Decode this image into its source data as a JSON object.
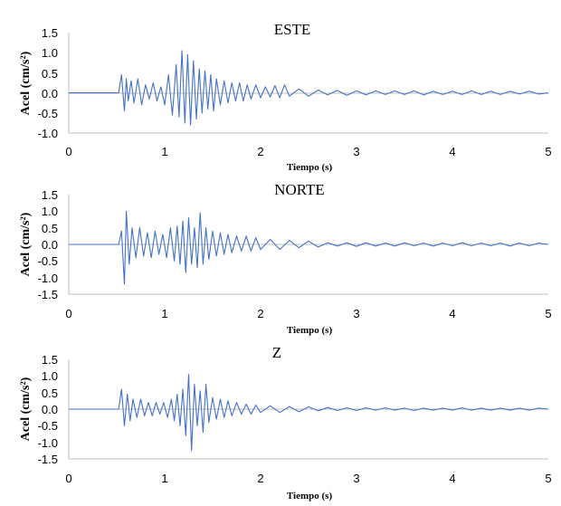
{
  "chart_data": [
    {
      "type": "line",
      "title": "ESTE",
      "xlabel": "Tiempo (s)",
      "ylabel": "Acel (cm/s²)",
      "xlim": [
        0,
        5
      ],
      "ylim": [
        -1.0,
        1.5
      ],
      "xticks": [
        "0",
        "1",
        "2",
        "3",
        "4",
        "5"
      ],
      "yticks": [
        "-1.0",
        "-0.5",
        "0.0",
        "0.5",
        "1.0",
        "1.5"
      ],
      "grid": false,
      "color": "#4472C4",
      "series": [
        {
          "x": [
            0,
            0.52,
            0.55,
            0.58,
            0.6,
            0.62,
            0.65,
            0.68,
            0.72,
            0.76,
            0.8,
            0.84,
            0.88,
            0.92,
            0.96,
            1.0,
            1.04,
            1.08,
            1.12,
            1.15,
            1.18,
            1.21,
            1.24,
            1.27,
            1.3,
            1.33,
            1.36,
            1.39,
            1.42,
            1.45,
            1.48,
            1.51,
            1.54,
            1.58,
            1.62,
            1.66,
            1.7,
            1.74,
            1.78,
            1.82,
            1.86,
            1.9,
            1.95,
            2.0,
            2.05,
            2.1,
            2.15,
            2.2,
            2.25,
            2.3,
            2.4,
            2.5,
            2.6,
            2.7,
            2.8,
            2.9,
            3.0,
            3.1,
            3.2,
            3.3,
            3.4,
            3.5,
            3.6,
            3.7,
            3.8,
            3.9,
            4.0,
            4.1,
            4.2,
            4.3,
            4.4,
            4.5,
            4.6,
            4.7,
            4.8,
            4.9,
            5.0
          ],
          "y": [
            0.0,
            0.0,
            0.45,
            -0.45,
            0.35,
            -0.2,
            0.3,
            -0.25,
            0.35,
            -0.3,
            0.2,
            -0.15,
            0.25,
            -0.2,
            0.15,
            -0.3,
            0.45,
            -0.55,
            0.7,
            -0.6,
            1.05,
            -0.75,
            0.95,
            -0.8,
            0.8,
            -0.65,
            0.6,
            -0.5,
            0.55,
            -0.4,
            0.45,
            -0.45,
            0.35,
            -0.3,
            0.3,
            -0.25,
            0.25,
            -0.2,
            0.25,
            -0.2,
            0.2,
            -0.15,
            0.2,
            -0.12,
            0.15,
            -0.1,
            0.18,
            -0.12,
            0.2,
            -0.08,
            0.1,
            -0.08,
            0.07,
            -0.05,
            0.06,
            -0.06,
            0.05,
            -0.05,
            0.05,
            -0.04,
            0.05,
            -0.04,
            0.05,
            -0.05,
            0.04,
            -0.04,
            0.04,
            -0.04,
            0.05,
            -0.04,
            0.04,
            -0.04,
            0.04,
            -0.03,
            0.04,
            -0.03,
            0.0
          ]
        }
      ]
    },
    {
      "type": "line",
      "title": "NORTE",
      "xlabel": "Tiempo (s)",
      "ylabel": "Acel (cm/s²)",
      "xlim": [
        0,
        5
      ],
      "ylim": [
        -1.5,
        1.5
      ],
      "xticks": [
        "0",
        "1",
        "2",
        "3",
        "4",
        "5"
      ],
      "yticks": [
        "-1.5",
        "-1.0",
        "-0.5",
        "0.0",
        "0.5",
        "1.0",
        "1.5"
      ],
      "grid": false,
      "color": "#4472C4",
      "series": [
        {
          "x": [
            0,
            0.52,
            0.55,
            0.58,
            0.6,
            0.63,
            0.66,
            0.7,
            0.74,
            0.78,
            0.82,
            0.86,
            0.9,
            0.94,
            0.98,
            1.02,
            1.06,
            1.1,
            1.13,
            1.16,
            1.19,
            1.22,
            1.25,
            1.28,
            1.31,
            1.34,
            1.37,
            1.4,
            1.43,
            1.46,
            1.5,
            1.54,
            1.58,
            1.62,
            1.66,
            1.7,
            1.75,
            1.8,
            1.85,
            1.9,
            1.95,
            2.0,
            2.1,
            2.2,
            2.3,
            2.4,
            2.5,
            2.6,
            2.7,
            2.8,
            2.9,
            3.0,
            3.1,
            3.2,
            3.3,
            3.4,
            3.5,
            3.6,
            3.7,
            3.8,
            3.9,
            4.0,
            4.1,
            4.2,
            4.3,
            4.4,
            4.5,
            4.6,
            4.7,
            4.8,
            4.9,
            5.0
          ],
          "y": [
            0.0,
            0.0,
            0.4,
            -1.2,
            1.0,
            -0.6,
            0.5,
            -0.4,
            0.5,
            -0.35,
            0.35,
            -0.4,
            0.4,
            -0.3,
            0.3,
            -0.4,
            0.5,
            -0.5,
            0.55,
            -0.6,
            0.7,
            -0.85,
            0.8,
            -0.6,
            0.5,
            -0.7,
            0.95,
            -0.6,
            0.5,
            -0.45,
            0.4,
            -0.35,
            0.35,
            -0.3,
            0.3,
            -0.25,
            0.25,
            -0.2,
            0.25,
            -0.2,
            0.2,
            -0.15,
            0.15,
            -0.15,
            0.12,
            -0.1,
            0.1,
            -0.08,
            0.05,
            -0.05,
            0.05,
            -0.06,
            0.05,
            -0.05,
            0.04,
            -0.05,
            0.05,
            -0.04,
            0.04,
            -0.05,
            0.04,
            -0.04,
            0.05,
            -0.04,
            0.04,
            -0.04,
            0.04,
            -0.05,
            0.04,
            -0.04,
            0.04,
            0.0
          ]
        }
      ]
    },
    {
      "type": "line",
      "title": "Z",
      "xlabel": "Tiempo (s)",
      "ylabel": "Acel (cm/s²)",
      "xlim": [
        0,
        5
      ],
      "ylim": [
        -1.5,
        1.5
      ],
      "xticks": [
        "0",
        "1",
        "2",
        "3",
        "4",
        "5"
      ],
      "yticks": [
        "-1.5",
        "-1.0",
        "-0.5",
        "0.0",
        "0.5",
        "1.0",
        "1.5"
      ],
      "grid": false,
      "color": "#4472C4",
      "series": [
        {
          "x": [
            0,
            0.52,
            0.55,
            0.58,
            0.61,
            0.64,
            0.67,
            0.71,
            0.75,
            0.79,
            0.83,
            0.87,
            0.91,
            0.95,
            0.99,
            1.03,
            1.07,
            1.1,
            1.13,
            1.16,
            1.19,
            1.22,
            1.25,
            1.28,
            1.31,
            1.34,
            1.37,
            1.4,
            1.43,
            1.46,
            1.5,
            1.54,
            1.58,
            1.62,
            1.66,
            1.7,
            1.75,
            1.8,
            1.85,
            1.9,
            1.95,
            2.0,
            2.1,
            2.2,
            2.3,
            2.4,
            2.5,
            2.6,
            2.7,
            2.8,
            2.9,
            3.0,
            3.1,
            3.2,
            3.3,
            3.4,
            3.5,
            3.6,
            3.7,
            3.8,
            3.9,
            4.0,
            4.1,
            4.2,
            4.3,
            4.4,
            4.5,
            4.6,
            4.7,
            4.8,
            4.9,
            5.0
          ],
          "y": [
            0.0,
            0.0,
            0.6,
            -0.5,
            0.45,
            -0.35,
            0.3,
            -0.25,
            0.3,
            -0.2,
            0.2,
            -0.2,
            0.2,
            -0.15,
            0.2,
            -0.25,
            0.3,
            -0.35,
            0.45,
            -0.5,
            0.6,
            -0.8,
            1.05,
            -1.25,
            0.75,
            -0.5,
            0.55,
            -0.7,
            0.75,
            -0.4,
            0.35,
            -0.3,
            0.3,
            -0.25,
            0.25,
            -0.2,
            0.2,
            -0.15,
            0.15,
            -0.15,
            0.12,
            -0.1,
            0.1,
            -0.1,
            0.08,
            -0.08,
            0.07,
            -0.05,
            0.05,
            -0.04,
            0.04,
            -0.04,
            0.04,
            -0.03,
            0.04,
            -0.03,
            0.03,
            -0.04,
            0.03,
            -0.03,
            0.03,
            -0.03,
            0.04,
            -0.03,
            0.03,
            -0.03,
            0.03,
            -0.03,
            0.03,
            -0.03,
            0.03,
            0.0
          ]
        }
      ]
    }
  ]
}
